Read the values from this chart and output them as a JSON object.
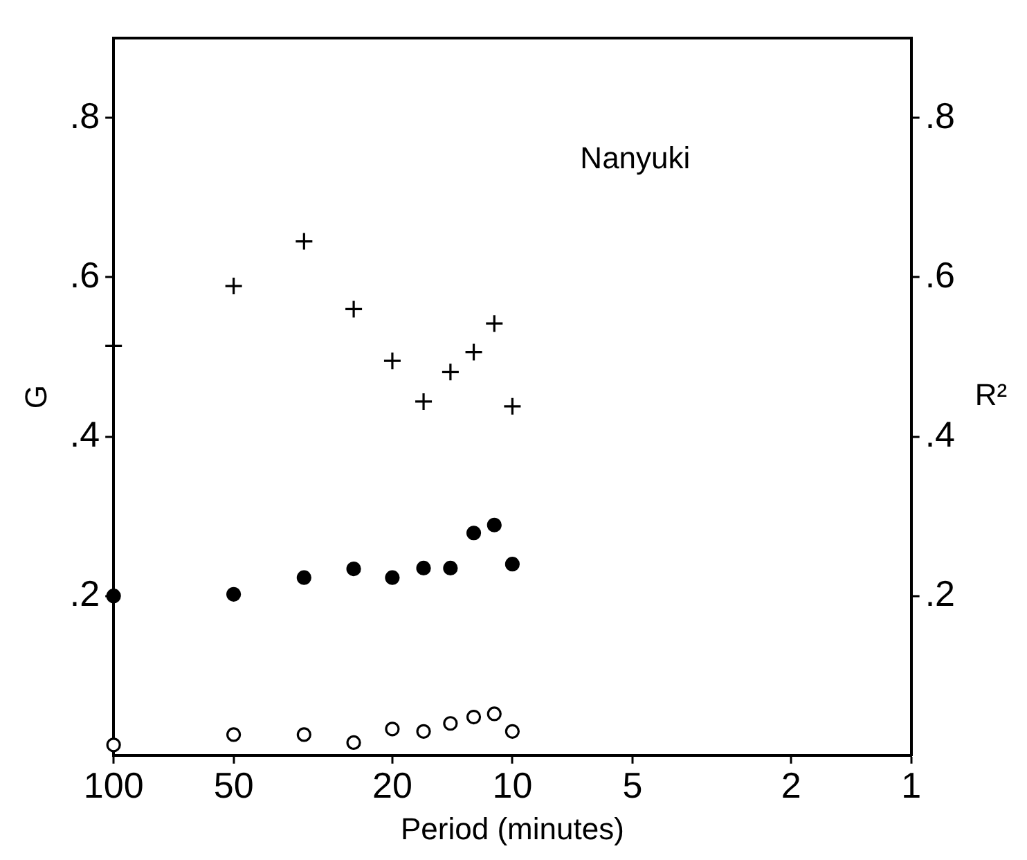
{
  "chart_data": {
    "type": "scatter",
    "xlabel": "Period (minutes)",
    "ylabel": "G",
    "y2label": "R²",
    "annotations": [
      "Nanyuki"
    ],
    "x": [
      100,
      50,
      33.3,
      25,
      20,
      16.7,
      14.3,
      12.5,
      11.1,
      10
    ],
    "log": "x",
    "xlim": [
      100,
      1
    ],
    "xticks": [
      100,
      50,
      20,
      10,
      5,
      2,
      1
    ],
    "ylim": [
      0,
      0.9
    ],
    "yticks": [
      {
        "value": 0.2,
        "label": ".2"
      },
      {
        "value": 0.4,
        "label": ".4"
      },
      {
        "value": 0.6,
        "label": ".6"
      },
      {
        "value": 0.8,
        "label": ".8"
      }
    ],
    "y2lim": [
      0,
      0.9
    ],
    "y2ticks": [
      {
        "value": 0.2,
        "label": ".2"
      },
      {
        "value": 0.4,
        "label": ".4"
      },
      {
        "value": 0.6,
        "label": ".6"
      },
      {
        "value": 0.8,
        "label": ".8"
      }
    ],
    "grid": false,
    "legend": false,
    "series": [
      {
        "color": "#000000",
        "marker": "cross",
        "values": [
          0.514,
          0.589,
          0.645,
          0.56,
          0.495,
          0.444,
          0.481,
          0.506,
          0.542,
          0.438
        ]
      },
      {
        "color": "#000000",
        "marker": "circle",
        "values": [
          0.2,
          0.202,
          0.223,
          0.234,
          0.223,
          0.235,
          0.235,
          0.279,
          0.289,
          0.24
        ]
      },
      {
        "color": "#000000",
        "marker": "open_circle",
        "values": [
          0.013,
          0.026,
          0.026,
          0.016,
          0.033,
          0.03,
          0.04,
          0.048,
          0.052,
          0.03
        ]
      }
    ]
  }
}
